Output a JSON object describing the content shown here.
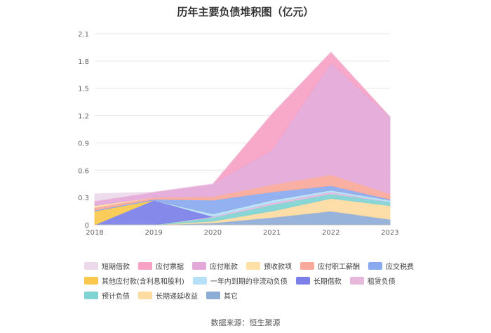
{
  "chart_data": {
    "type": "area",
    "title": "历年主要负债堆积图（亿元）",
    "x": [
      "2018",
      "2019",
      "2020",
      "2021",
      "2022",
      "2023"
    ],
    "ylim": [
      0,
      2.1
    ],
    "yticks": [
      "0",
      "0.3",
      "0.6",
      "0.9",
      "1.2",
      "1.5",
      "1.8",
      "2.1"
    ],
    "stacked": true,
    "grid": true,
    "legend_position": "bottom",
    "series": [
      {
        "name": "其它",
        "color": "#8eadd6",
        "values": [
          0.0,
          0.0,
          0.02,
          0.08,
          0.15,
          0.06
        ]
      },
      {
        "name": "长期递延收益",
        "color": "#fddba1",
        "values": [
          0.0,
          0.0,
          0.02,
          0.07,
          0.14,
          0.15
        ]
      },
      {
        "name": "预计负债",
        "color": "#7fd3d3",
        "values": [
          0.0,
          0.0,
          0.04,
          0.07,
          0.05,
          0.04
        ]
      },
      {
        "name": "租赁负债",
        "color": "#e6b8dc",
        "values": [
          0.0,
          0.0,
          0.01,
          0.02,
          0.02,
          0.0
        ]
      },
      {
        "name": "长期借款",
        "color": "#7b7fe8",
        "values": [
          0.0,
          0.27,
          0.0,
          0.0,
          0.0,
          0.0
        ]
      },
      {
        "name": "一年内到期的非流动负债",
        "color": "#b6e0f7",
        "values": [
          0.0,
          0.0,
          0.03,
          0.03,
          0.02,
          0.02
        ]
      },
      {
        "name": "其他应付款(含利息和股利)",
        "color": "#fac84c",
        "values": [
          0.15,
          0.0,
          0.0,
          0.0,
          0.0,
          0.0
        ]
      },
      {
        "name": "应交税费",
        "color": "#8aaaf0",
        "values": [
          0.01,
          0.01,
          0.15,
          0.09,
          0.05,
          0.01
        ]
      },
      {
        "name": "应付职工薪酬",
        "color": "#f9a99a",
        "values": [
          0.03,
          0.02,
          0.04,
          0.08,
          0.12,
          0.06
        ]
      },
      {
        "name": "预收款项",
        "color": "#fde0a6",
        "values": [
          0.02,
          0.0,
          0.0,
          0.0,
          0.0,
          0.0
        ]
      },
      {
        "name": "应付账款",
        "color": "#e4a8d8",
        "values": [
          0.05,
          0.06,
          0.14,
          0.38,
          1.23,
          0.85
        ]
      },
      {
        "name": "应付票据",
        "color": "#f7a1c4",
        "values": [
          0.0,
          0.0,
          0.0,
          0.4,
          0.12,
          0.0
        ]
      },
      {
        "name": "短期借款",
        "color": "#ecd9ea",
        "values": [
          0.08,
          0.0,
          0.0,
          0.0,
          0.0,
          0.0
        ]
      }
    ]
  },
  "legend_rows": [
    [
      "短期借款",
      "应付票据",
      "应付账款",
      "预收款项",
      "应付职工薪酬",
      "应交税费"
    ],
    [
      "其他应付款(含利息和股利)",
      "一年内到期的非流动负债",
      "长期借款",
      "租赁负债"
    ],
    [
      "预计负债",
      "长期递延收益",
      "其它"
    ]
  ],
  "source": "数据来源：恒生聚源"
}
